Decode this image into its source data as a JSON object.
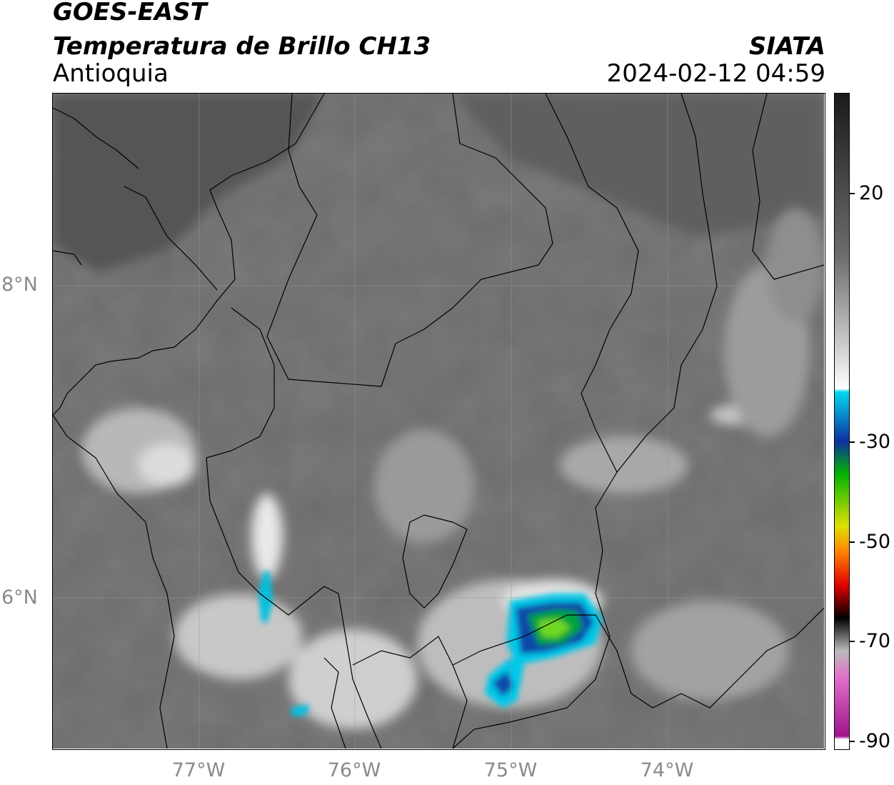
{
  "header": {
    "satellite": "GOES-EAST",
    "product": "Temperatura de Brillo CH13",
    "organization": "SIATA",
    "region": "Antioquia",
    "timestamp": "2024-02-12 04:59"
  },
  "map": {
    "lat_labels": [
      "8°N",
      "6°N"
    ],
    "lon_labels": [
      "77°W",
      "76°W",
      "75°W",
      "74°W"
    ],
    "gridlines": true
  },
  "colorbar": {
    "labels": [
      "20",
      "-30",
      "-50",
      "-70",
      "-90"
    ],
    "colors": {
      "hot": "#1a1a1a",
      "warm": "#6e6e6e",
      "mild": "#d8d8d8",
      "cyan": "#00d8f0",
      "blue": "#1030a0",
      "green": "#00b400",
      "yellow": "#e0e000",
      "orange": "#ff8000",
      "red": "#e00000",
      "magenta": "#a0148c"
    }
  },
  "chart_data": {
    "type": "heatmap",
    "title": "Temperatura de Brillo CH13",
    "colorbar_ticks": [
      20,
      -30,
      -50,
      -70,
      -90
    ],
    "lat_ticks": [
      "8°N",
      "6°N"
    ],
    "lon_ticks": [
      "77°W",
      "76°W",
      "75°W",
      "74°W"
    ]
  }
}
